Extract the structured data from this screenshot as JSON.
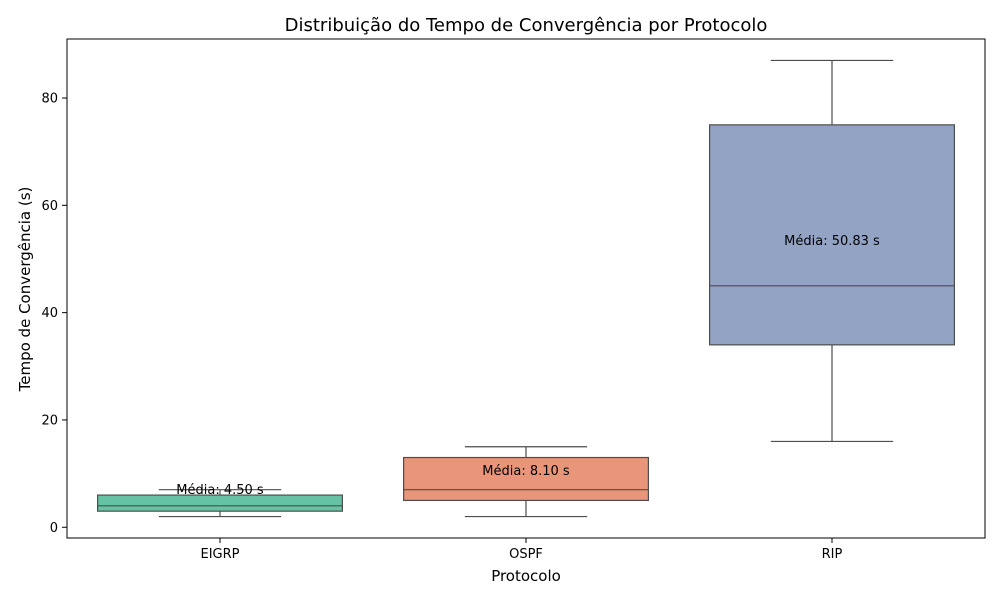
{
  "chart_data": {
    "type": "box",
    "title": "Distribuição do Tempo de Convergência por Protocolo",
    "xlabel": "Protocolo",
    "ylabel": "Tempo de Convergência (s)",
    "ylim": [
      -2,
      91
    ],
    "yticks": [
      0,
      20,
      40,
      60,
      80
    ],
    "grid": false,
    "categories": [
      "EIGRP",
      "OSPF",
      "RIP"
    ],
    "boxes": [
      {
        "category": "EIGRP",
        "whisker_low": 2,
        "q1": 3,
        "median": 4,
        "q3": 6,
        "whisker_high": 7,
        "color": "#66c2a5",
        "mean_label": "Média: 4.50 s",
        "mean_label_y": 7
      },
      {
        "category": "OSPF",
        "whisker_low": 2,
        "q1": 5,
        "median": 7,
        "q3": 13,
        "whisker_high": 15,
        "color": "#e8957a",
        "mean_label": "Média: 8.10 s",
        "mean_label_y": 10.6
      },
      {
        "category": "RIP",
        "whisker_low": 16,
        "q1": 34,
        "median": 45,
        "q3": 75,
        "whisker_high": 87,
        "color": "#93a3c3",
        "mean_label": "Média: 50.83 s",
        "mean_label_y": 53.4
      }
    ],
    "line_color": "#4d4d4d"
  }
}
